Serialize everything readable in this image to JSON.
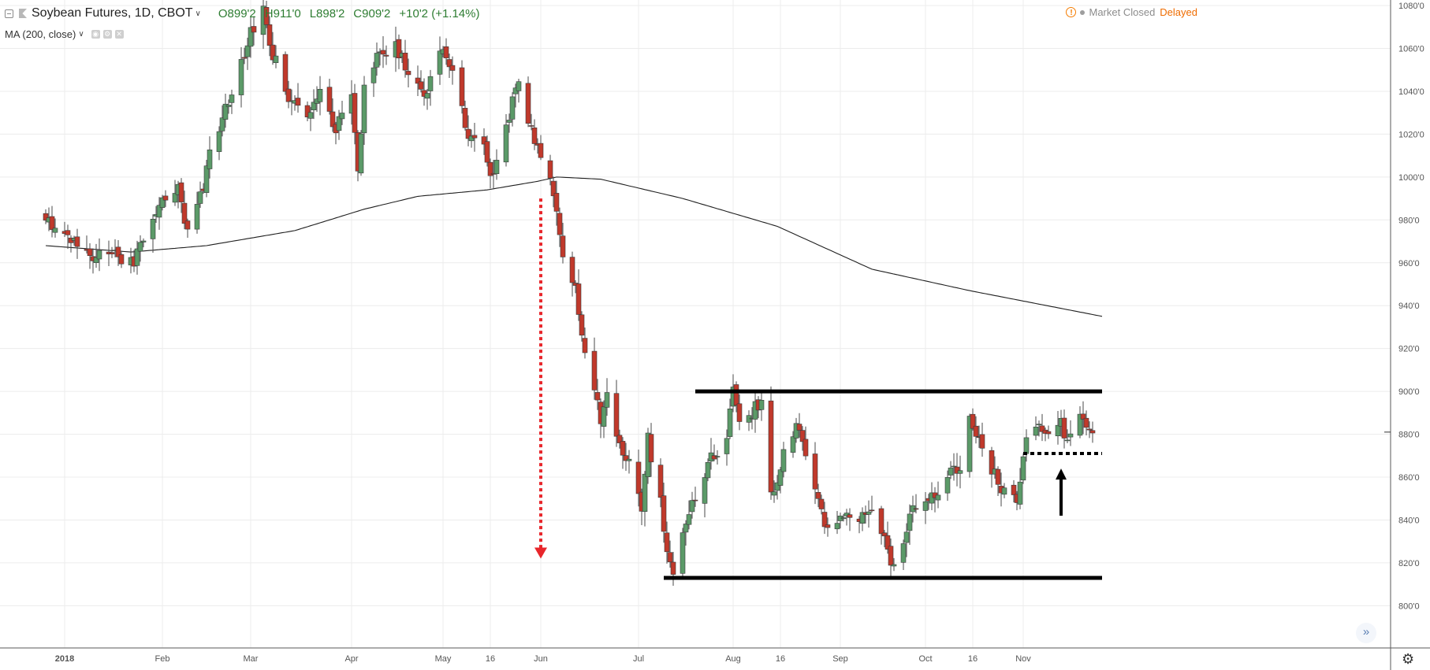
{
  "legend": {
    "symbol_title": "Soybean Futures, 1D, CBOT",
    "ohlc": {
      "open": "O899'2",
      "high": "H911'0",
      "low": "L898'2",
      "close": "C909'2",
      "change": "+10'2 (+1.14%)"
    },
    "indicator": "MA (200, close)"
  },
  "status": {
    "market": "Market Closed",
    "delayed": "Delayed"
  },
  "icons": {
    "collapse": "minus-square-icon",
    "flag": "flag-icon",
    "warning": "warning-icon",
    "scroll_to_realtime": "double-chevron-right-icon",
    "settings": "gear-icon"
  },
  "colors": {
    "up_candle": "#5b9a68",
    "down_candle": "#c0392b",
    "ma_line": "#1f1f1f",
    "support_resistance": "#000000",
    "projection_arrow": "#e8262b",
    "trigger_arrow": "#000000",
    "ohlc_text": "#2e7d32",
    "delayed_text": "#ef6c00"
  },
  "chart_data": {
    "type": "candlestick",
    "scale": "linear",
    "grid": true,
    "ylim": [
      796,
      1086
    ],
    "y_ticks": [
      "800'0",
      "820'0",
      "840'0",
      "860'0",
      "880'0",
      "900'0",
      "920'0",
      "940'0",
      "960'0",
      "980'0",
      "1000'0",
      "1020'0",
      "1040'0",
      "1060'0",
      "1080'0"
    ],
    "x_ticks": [
      {
        "label": "2018",
        "date": "2018-01-01"
      },
      {
        "label": "Feb",
        "date": "2018-02-01"
      },
      {
        "label": "Mar",
        "date": "2018-03-01"
      },
      {
        "label": "Apr",
        "date": "2018-04-02"
      },
      {
        "label": "May",
        "date": "2018-05-01"
      },
      {
        "label": "16",
        "date": "2018-05-16"
      },
      {
        "label": "Jun",
        "date": "2018-06-01"
      },
      {
        "label": "Jul",
        "date": "2018-07-02"
      },
      {
        "label": "Aug",
        "date": "2018-08-01"
      },
      {
        "label": "16",
        "date": "2018-08-16"
      },
      {
        "label": "Sep",
        "date": "2018-09-04"
      },
      {
        "label": "Oct",
        "date": "2018-10-01"
      },
      {
        "label": "16",
        "date": "2018-10-16"
      },
      {
        "label": "Nov",
        "date": "2018-11-01"
      }
    ],
    "price_path": [
      [
        "2017-12-26",
        982
      ],
      [
        "2017-12-29",
        976
      ],
      [
        "2018-01-05",
        968
      ],
      [
        "2018-01-10",
        962
      ],
      [
        "2018-01-16",
        966
      ],
      [
        "2018-01-19",
        958
      ],
      [
        "2018-01-23",
        960
      ],
      [
        "2018-01-25",
        970
      ],
      [
        "2018-01-30",
        985
      ],
      [
        "2018-02-02",
        988
      ],
      [
        "2018-02-06",
        994
      ],
      [
        "2018-02-09",
        975
      ],
      [
        "2018-02-13",
        990
      ],
      [
        "2018-02-16",
        1010
      ],
      [
        "2018-02-21",
        1032
      ],
      [
        "2018-02-26",
        1052
      ],
      [
        "2018-03-01",
        1068
      ],
      [
        "2018-03-05",
        1078
      ],
      [
        "2018-03-08",
        1058
      ],
      [
        "2018-03-13",
        1038
      ],
      [
        "2018-03-19",
        1026
      ],
      [
        "2018-03-23",
        1044
      ],
      [
        "2018-03-28",
        1022
      ],
      [
        "2018-04-02",
        1040
      ],
      [
        "2018-04-04",
        1003
      ],
      [
        "2018-04-06",
        1042
      ],
      [
        "2018-04-11",
        1058
      ],
      [
        "2018-04-16",
        1062
      ],
      [
        "2018-04-20",
        1048
      ],
      [
        "2018-04-25",
        1036
      ],
      [
        "2018-04-30",
        1060
      ],
      [
        "2018-05-04",
        1050
      ],
      [
        "2018-05-09",
        1020
      ],
      [
        "2018-05-14",
        1016
      ],
      [
        "2018-05-16",
        998
      ],
      [
        "2018-05-18",
        1010
      ],
      [
        "2018-05-22",
        1030
      ],
      [
        "2018-05-25",
        1046
      ],
      [
        "2018-05-29",
        1022
      ],
      [
        "2018-06-01",
        1008
      ],
      [
        "2018-06-04",
        1000
      ],
      [
        "2018-06-06",
        982
      ],
      [
        "2018-06-08",
        963
      ],
      [
        "2018-06-12",
        946
      ],
      [
        "2018-06-15",
        918
      ],
      [
        "2018-06-18",
        899
      ],
      [
        "2018-06-20",
        888
      ],
      [
        "2018-06-22",
        898
      ],
      [
        "2018-06-26",
        876
      ],
      [
        "2018-06-29",
        866
      ],
      [
        "2018-07-03",
        845
      ],
      [
        "2018-07-05",
        878
      ],
      [
        "2018-07-09",
        848
      ],
      [
        "2018-07-11",
        822
      ],
      [
        "2018-07-13",
        818
      ],
      [
        "2018-07-17",
        840
      ],
      [
        "2018-07-20",
        852
      ],
      [
        "2018-07-25",
        868
      ],
      [
        "2018-07-30",
        880
      ],
      [
        "2018-08-01",
        900
      ],
      [
        "2018-08-03",
        884
      ],
      [
        "2018-08-07",
        890
      ],
      [
        "2018-08-10",
        896
      ],
      [
        "2018-08-13",
        852
      ],
      [
        "2018-08-15",
        858
      ],
      [
        "2018-08-17",
        870
      ],
      [
        "2018-08-21",
        886
      ],
      [
        "2018-08-23",
        878
      ],
      [
        "2018-08-27",
        856
      ],
      [
        "2018-08-30",
        838
      ],
      [
        "2018-09-05",
        842
      ],
      [
        "2018-09-10",
        840
      ],
      [
        "2018-09-13",
        846
      ],
      [
        "2018-09-17",
        832
      ],
      [
        "2018-09-19",
        828
      ],
      [
        "2018-09-21",
        816
      ],
      [
        "2018-09-25",
        836
      ],
      [
        "2018-09-28",
        848
      ],
      [
        "2018-10-03",
        850
      ],
      [
        "2018-10-08",
        860
      ],
      [
        "2018-10-12",
        866
      ],
      [
        "2018-10-15",
        888
      ],
      [
        "2018-10-17",
        880
      ],
      [
        "2018-10-19",
        872
      ],
      [
        "2018-10-23",
        862
      ],
      [
        "2018-10-26",
        852
      ],
      [
        "2018-10-30",
        848
      ],
      [
        "2018-11-01",
        872
      ],
      [
        "2018-11-05",
        884
      ],
      [
        "2018-11-09",
        878
      ],
      [
        "2018-11-13",
        884
      ],
      [
        "2018-11-15",
        876
      ],
      [
        "2018-11-19",
        888
      ],
      [
        "2018-11-21",
        880
      ],
      [
        "2018-11-23",
        881
      ]
    ],
    "ma_200": [
      [
        "2017-12-26",
        968
      ],
      [
        "2018-01-22",
        965
      ],
      [
        "2018-02-15",
        968
      ],
      [
        "2018-03-15",
        975
      ],
      [
        "2018-04-06",
        985
      ],
      [
        "2018-04-23",
        991
      ],
      [
        "2018-05-15",
        994
      ],
      [
        "2018-05-31",
        998
      ],
      [
        "2018-06-06",
        1000
      ],
      [
        "2018-06-20",
        999
      ],
      [
        "2018-07-16",
        990
      ],
      [
        "2018-08-15",
        977
      ],
      [
        "2018-09-14",
        957
      ],
      [
        "2018-10-15",
        947
      ],
      [
        "2018-11-26",
        935
      ]
    ],
    "annotations": {
      "resistance": {
        "price": 900,
        "from": "2018-07-20",
        "to": "2018-11-26"
      },
      "support": {
        "price": 813,
        "from": "2018-07-10",
        "to": "2018-11-26"
      },
      "breakout_level": {
        "price": 871,
        "from": "2018-11-01",
        "to": "2018-11-26"
      },
      "projection_arrow": {
        "date": "2018-06-01",
        "from": 990,
        "to": 822
      },
      "up_arrow": {
        "date": "2018-11-13",
        "from": 842,
        "to": 864
      }
    }
  }
}
